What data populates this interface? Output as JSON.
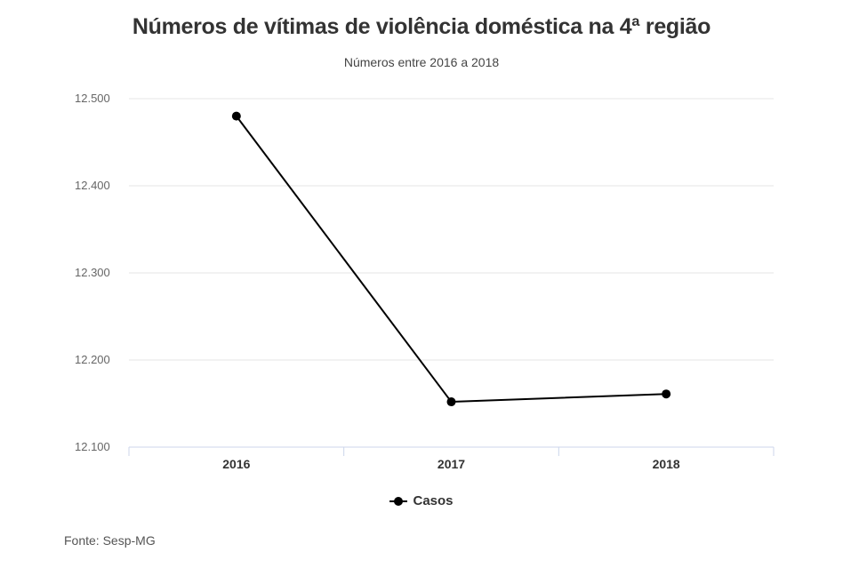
{
  "chart_data": {
    "type": "line",
    "title": "Números de vítimas de violência doméstica na 4ª região",
    "subtitle": "Números entre 2016 a 2018",
    "categories": [
      "2016",
      "2017",
      "2018"
    ],
    "series": [
      {
        "name": "Casos",
        "values": [
          12480,
          12152,
          12161
        ],
        "color": "#000000"
      }
    ],
    "y_ticks": [
      12100,
      12200,
      12300,
      12400,
      12500
    ],
    "y_tick_labels": [
      "12.100",
      "12.200",
      "12.300",
      "12.400",
      "12.500"
    ],
    "ylim": [
      12100,
      12500
    ],
    "grid": true,
    "legend_position": "bottom"
  },
  "source": "Fonte: Sesp-MG"
}
